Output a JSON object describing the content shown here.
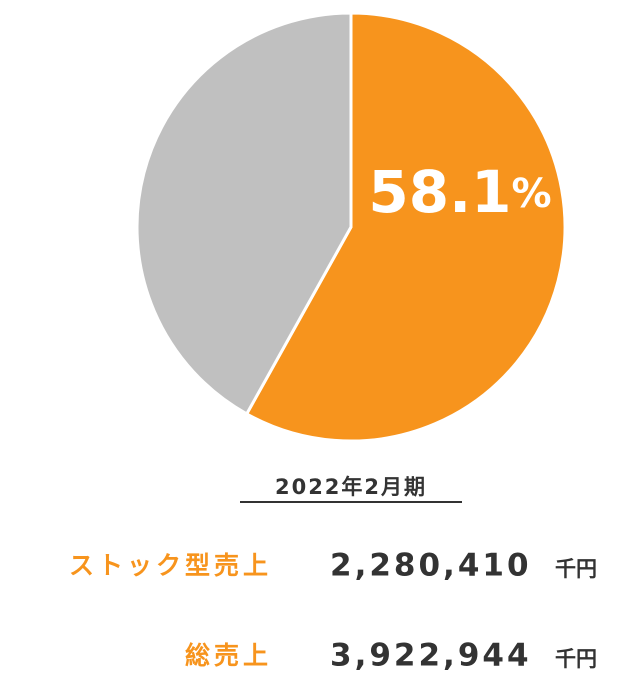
{
  "chart_data": {
    "type": "pie",
    "values": [
      58.1,
      41.9
    ],
    "value_labels": [
      "58.1%",
      null
    ],
    "colors": [
      "#f7941d",
      "#c0c0c0"
    ]
  },
  "summary": {
    "period": "2022年2月期",
    "rows": [
      {
        "label": "ストック型売上",
        "value": "2,280,410",
        "unit": "千円"
      },
      {
        "label": "総売上",
        "value": "3,922,944",
        "unit": "千円"
      }
    ]
  }
}
